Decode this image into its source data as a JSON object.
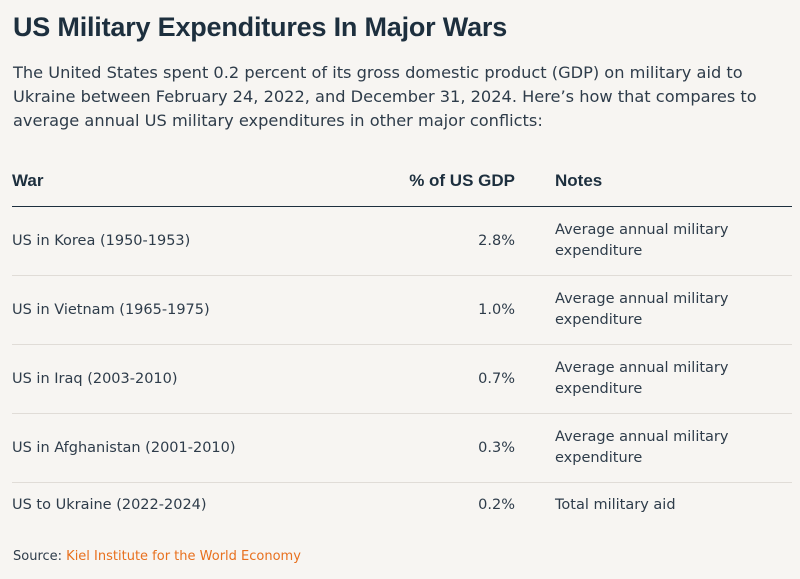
{
  "title": "US Military Expenditures In Major Wars",
  "subtitle": "The United States spent 0.2 percent of its gross domestic product (GDP) on military aid to Ukraine between February 24, 2022, and December 31, 2024. Here’s how that compares to average annual US military expenditures in other major conflicts:",
  "chart_data": {
    "type": "table",
    "columns": [
      "War",
      "% of US GDP",
      "Notes"
    ],
    "rows": [
      {
        "war": "US in Korea (1950-1953)",
        "pct_label": "2.8%",
        "value": 2.8,
        "notes": "Average annual military expenditure"
      },
      {
        "war": "US in Vietnam (1965-1975)",
        "pct_label": "1.0%",
        "value": 1.0,
        "notes": "Average annual military expenditure"
      },
      {
        "war": "US in Iraq (2003-2010)",
        "pct_label": "0.7%",
        "value": 0.7,
        "notes": "Average annual military expenditure"
      },
      {
        "war": "US in Afghanistan (2001-2010)",
        "pct_label": "0.3%",
        "value": 0.3,
        "notes": "Average annual military expenditure"
      },
      {
        "war": "US to Ukraine (2022-2024)",
        "pct_label": "0.2%",
        "value": 0.2,
        "notes": "Total military aid"
      }
    ]
  },
  "source": {
    "label": "Source:",
    "text": "Kiel Institute for the World Economy"
  },
  "colors": {
    "background": "#f7f5f2",
    "heading": "#1d2f3e",
    "text": "#2e3c4a",
    "source_link": "#e8701e",
    "header_rule": "#1d2f3e",
    "row_rule": "#e0dcd7"
  }
}
